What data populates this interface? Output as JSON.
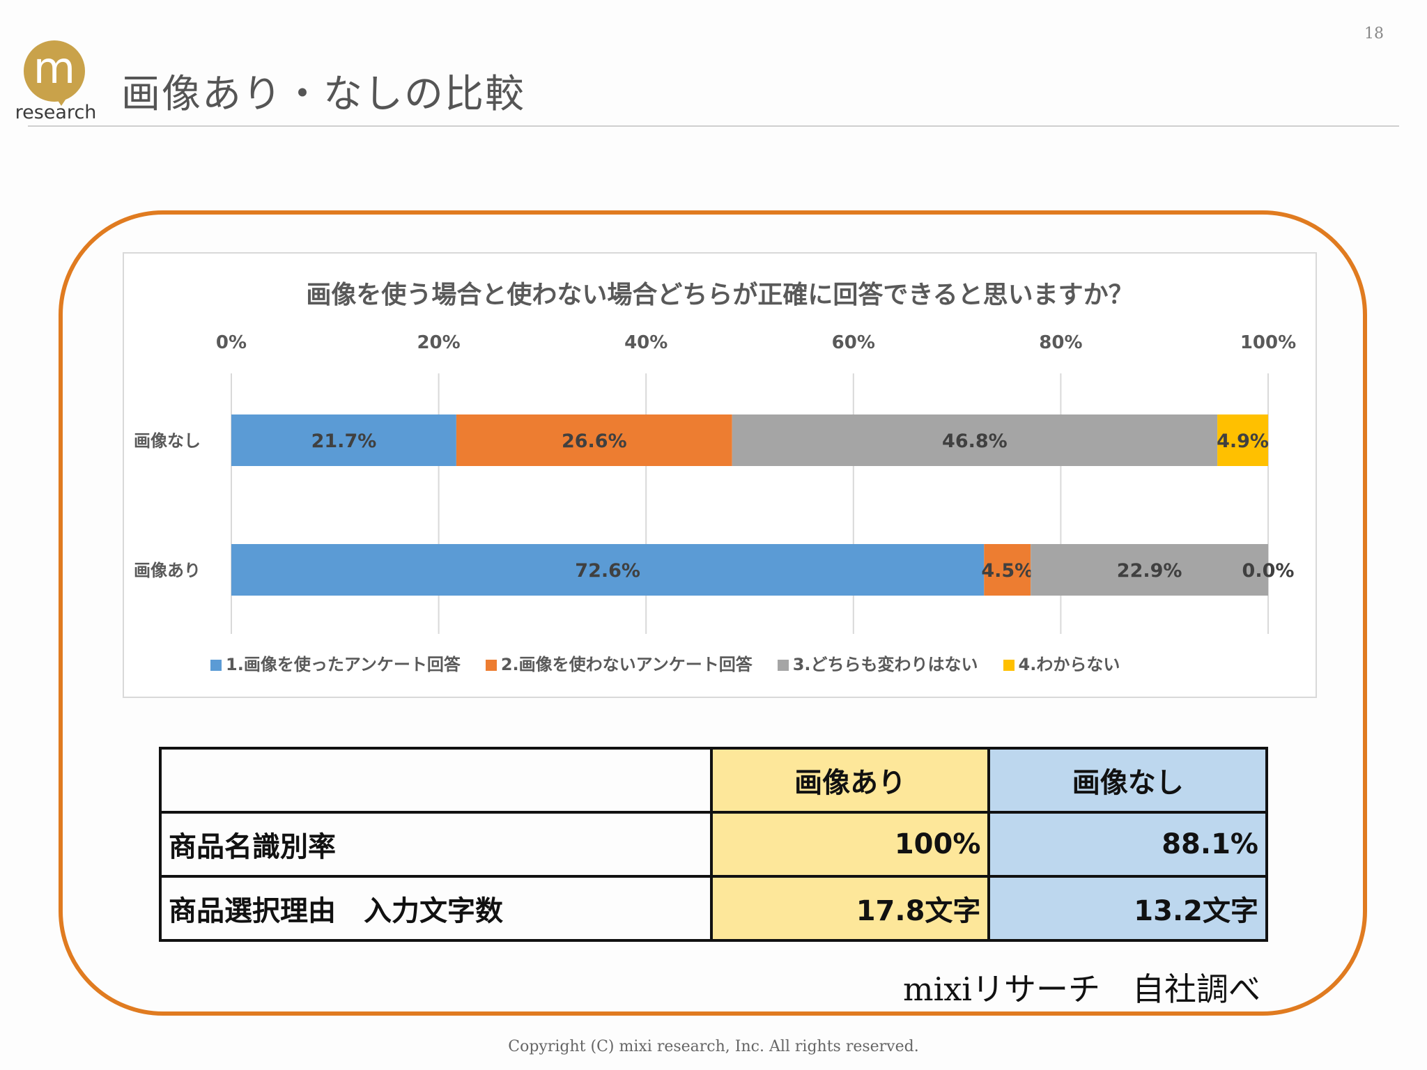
{
  "header": {
    "logo_mark": "m",
    "logo_text": "research",
    "title": "画像あり・なしの比較",
    "page_number": "18"
  },
  "colors": {
    "frame": "#e07b20",
    "series1": "#5b9bd5",
    "series2": "#ed7d31",
    "series3": "#a5a5a5",
    "series4": "#ffc000",
    "table_with": "#fde79a",
    "table_without": "#bdd7ee"
  },
  "chart_data": {
    "type": "bar",
    "orientation": "horizontal",
    "stacked": "percent",
    "title": "画像を使う場合と使わない場合どちらが正確に回答できると思いますか？",
    "categories": [
      "画像なし",
      "画像あり"
    ],
    "x_ticks": [
      "0%",
      "20%",
      "40%",
      "60%",
      "80%",
      "100%"
    ],
    "xlim": [
      0,
      100
    ],
    "grid": true,
    "legend_position": "bottom",
    "series": [
      {
        "name": "1.画像を使ったアンケート回答",
        "values": [
          21.7,
          72.6
        ],
        "labels": [
          "21.7%",
          "72.6%"
        ]
      },
      {
        "name": "2.画像を使わないアンケート回答",
        "values": [
          26.6,
          4.5
        ],
        "labels": [
          "26.6%",
          "4.5%"
        ]
      },
      {
        "name": "3.どちらも変わりはない",
        "values": [
          46.8,
          22.9
        ],
        "labels": [
          "46.8%",
          "22.9%"
        ]
      },
      {
        "name": "4.わからない",
        "values": [
          4.9,
          0.0
        ],
        "labels": [
          "4.9%",
          "0.0%"
        ]
      }
    ]
  },
  "table": {
    "header": [
      "",
      "画像あり",
      "画像なし"
    ],
    "rows": [
      {
        "label": "商品名識別率",
        "with": "100%",
        "without": "88.1%"
      },
      {
        "label": "商品選択理由　入力文字数",
        "with": "17.8文字",
        "without": "13.2文字"
      }
    ]
  },
  "source_note": "mixiリサーチ　自社調べ",
  "copyright": "Copyright (C) mixi research, Inc. All rights reserved."
}
